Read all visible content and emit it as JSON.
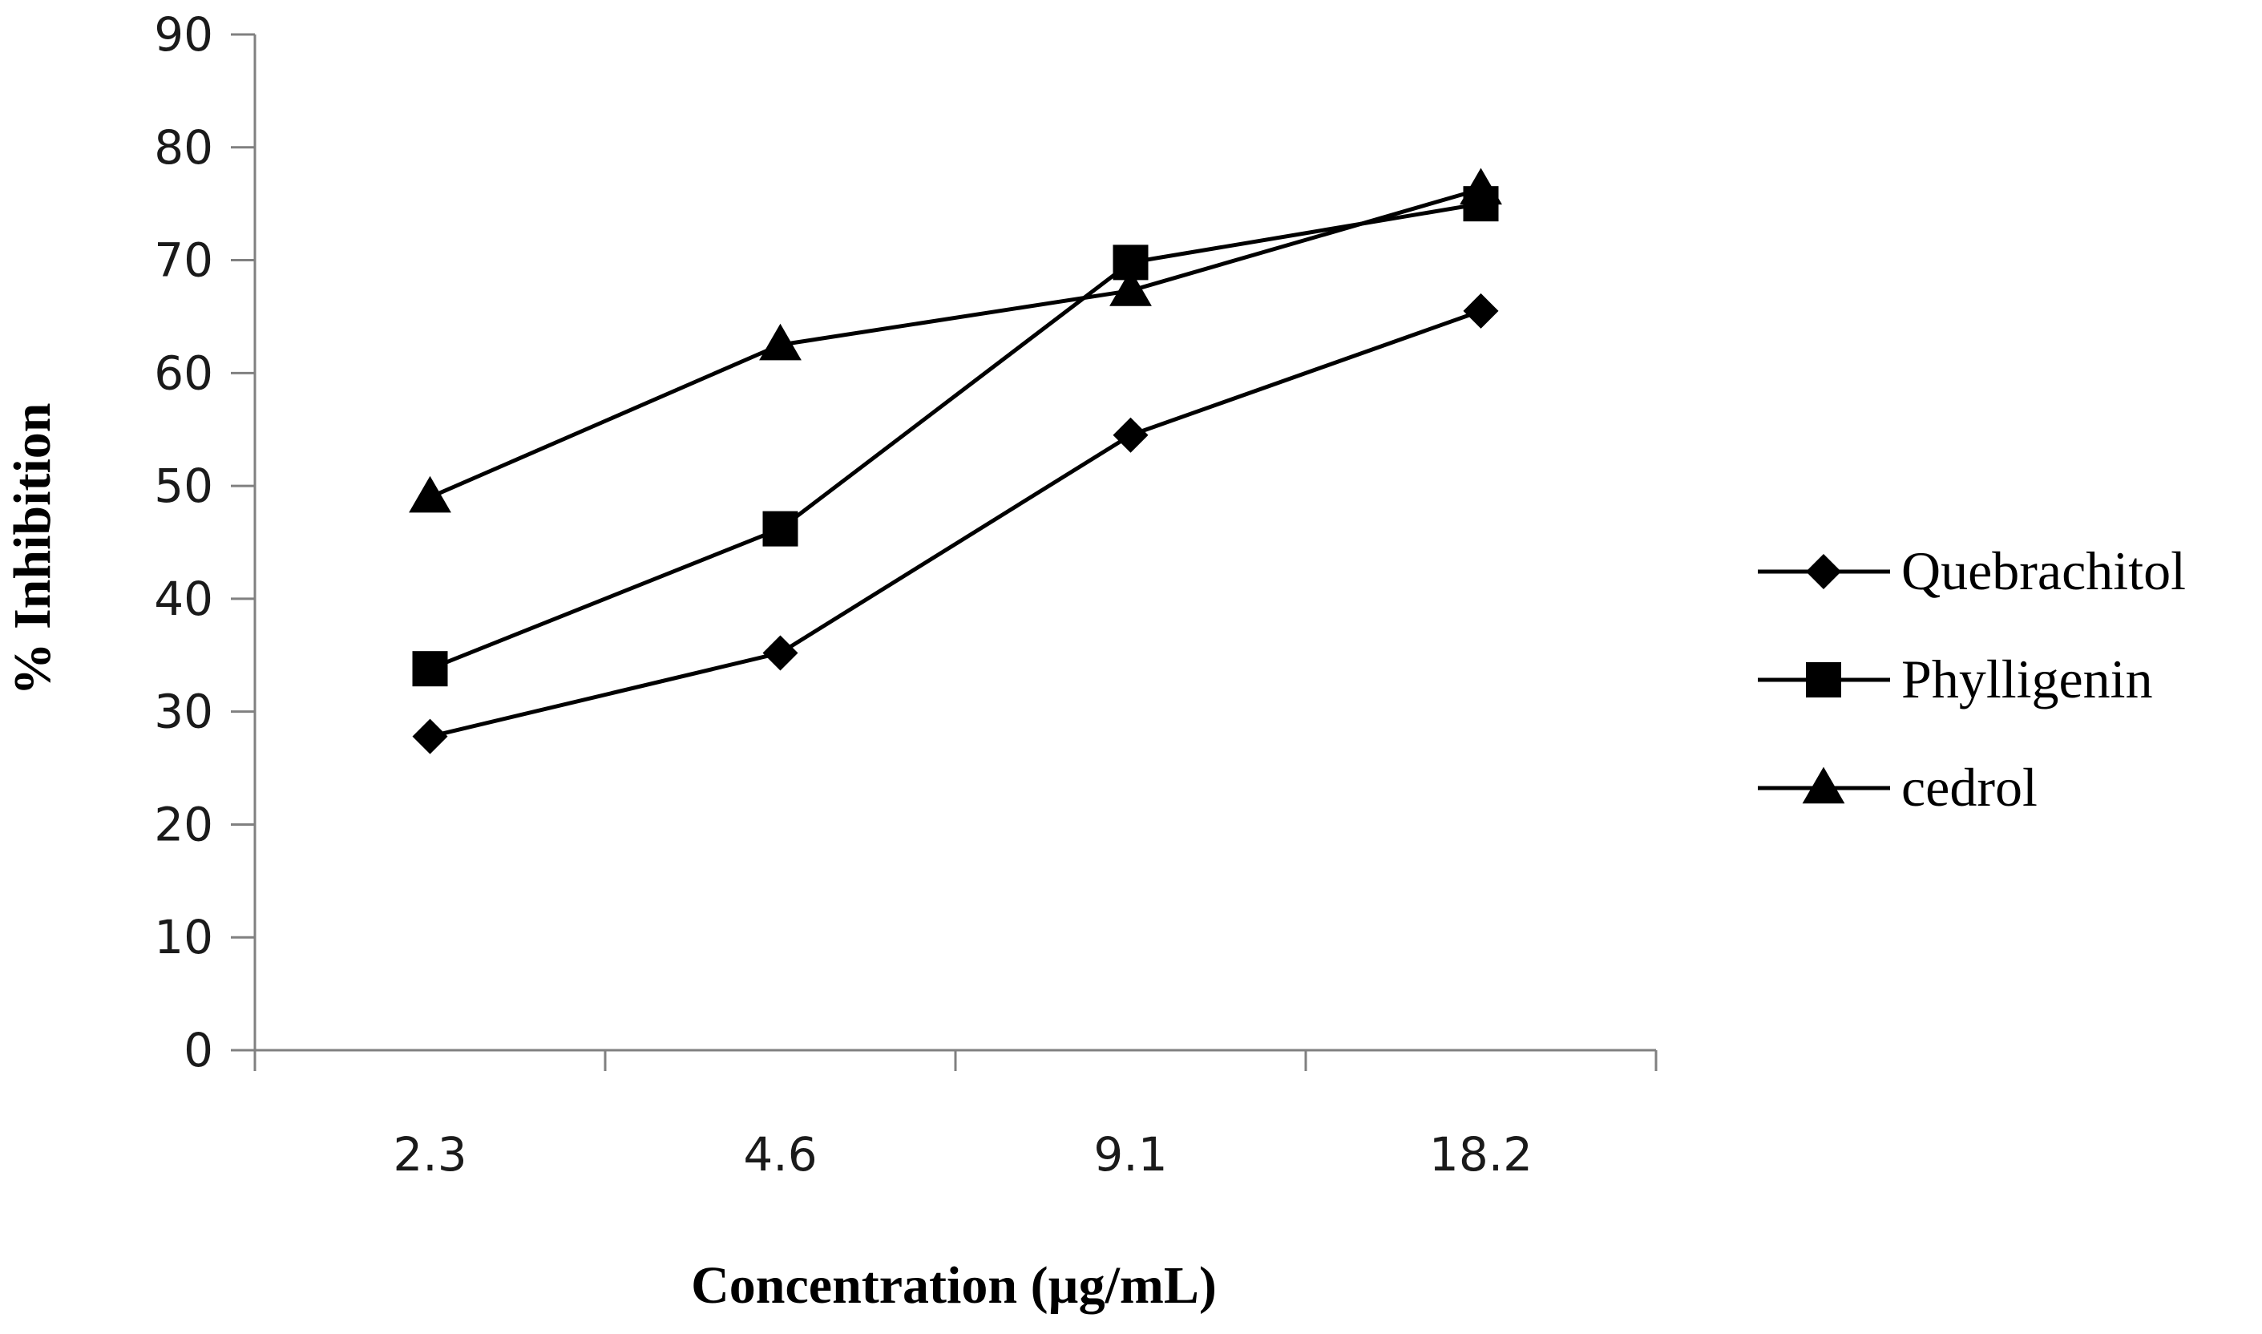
{
  "chart_data": {
    "type": "line",
    "title": "",
    "xlabel": "Concentration (µg/mL)",
    "ylabel": "% Inhibition",
    "categories": [
      "2.3",
      "4.6",
      "9.1",
      "18.2"
    ],
    "ylim": [
      0,
      90
    ],
    "yticks": [
      0,
      10,
      20,
      30,
      40,
      50,
      60,
      70,
      80,
      90
    ],
    "grid": false,
    "legend_position": "right",
    "series": [
      {
        "name": "Quebrachitol",
        "marker": "diamond",
        "values": [
          27.8,
          35.2,
          54.5,
          65.5
        ]
      },
      {
        "name": "Phylligenin",
        "marker": "square",
        "values": [
          33.8,
          46.2,
          69.8,
          75.0
        ]
      },
      {
        "name": "cedrol",
        "marker": "triangle",
        "values": [
          49.0,
          62.5,
          67.3,
          76.3
        ]
      }
    ],
    "colors": {
      "line": "#000000",
      "marker": "#000000",
      "axis": "#808080"
    }
  }
}
